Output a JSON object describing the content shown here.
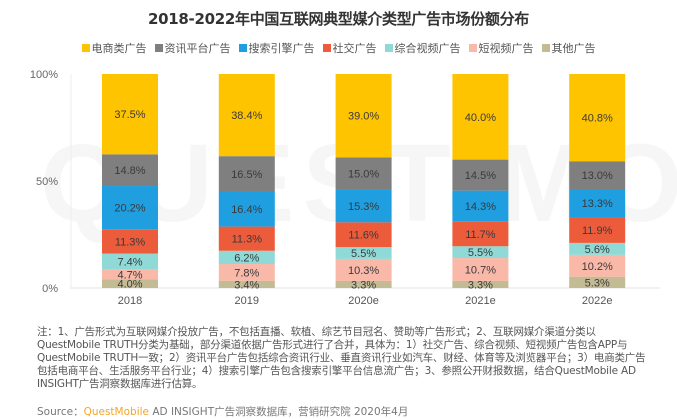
{
  "chart_data": {
    "type": "bar",
    "stacked": true,
    "title": "2018-2022年中国互联网典型媒介类型广告市场份额分布",
    "xlabel": "",
    "ylabel": "",
    "ylim": [
      0,
      100
    ],
    "yticks": [
      "0%",
      "50%",
      "100%"
    ],
    "categories": [
      "2018",
      "2019",
      "2020e",
      "2021e",
      "2022e"
    ],
    "legend_position": "top",
    "series": [
      {
        "name": "电商类广告",
        "color": "#ffc400",
        "values": [
          37.5,
          38.4,
          39.0,
          40.0,
          40.8
        ]
      },
      {
        "name": "资讯平台广告",
        "color": "#7f7f7f",
        "values": [
          14.8,
          16.5,
          15.0,
          14.5,
          13.0
        ]
      },
      {
        "name": "搜索引擎广告",
        "color": "#1f9ee0",
        "values": [
          20.2,
          16.4,
          15.3,
          14.3,
          13.3
        ]
      },
      {
        "name": "社交广告",
        "color": "#ec5b3a",
        "values": [
          11.3,
          11.3,
          11.6,
          11.7,
          11.9
        ]
      },
      {
        "name": "综合视频广告",
        "color": "#8fd9d6",
        "values": [
          7.4,
          6.2,
          5.5,
          5.5,
          5.6
        ]
      },
      {
        "name": "短视频广告",
        "color": "#f9b8a8",
        "values": [
          4.7,
          7.8,
          10.3,
          10.7,
          10.2
        ]
      },
      {
        "name": "其他广告",
        "color": "#c2bb94",
        "values": [
          4.0,
          3.4,
          3.3,
          3.3,
          5.3
        ]
      }
    ],
    "stack_order_bottom_to_top": [
      "其他广告",
      "短视频广告",
      "综合视频广告",
      "社交广告",
      "搜索引擎广告",
      "资讯平台广告",
      "电商类广告"
    ],
    "grid": false
  },
  "watermark": "QUEST MOBILE",
  "notes": "注：1、广告形式为互联网媒介投放广告，不包括直播、软植、综艺节目冠名、赞助等广告形式；2、互联网媒介渠道分类以QuestMobile TRUTH分类为基础，部分渠道依据广告形式进行了合并，具体为：1）社交广告、综合视频、短视频广告包含APP与QuestMobile TRUTH一致；2）资讯平台广告包括综合资讯行业、垂直资讯行业如汽车、财经、体育等及浏览器平台；3）电商类广告包括电商平台、生活服务平台行业；4）搜索引擎广告包含搜索引擎平台信息流广告；3、参照公开财报数据，结合QuestMobile AD INSIGHT广告洞察数据库进行估算。",
  "source": {
    "prefix": "Source：",
    "brand": "QuestMobile",
    "rest": " AD INSIGHT广告洞察数据库，营销研究院 2020年4月"
  }
}
